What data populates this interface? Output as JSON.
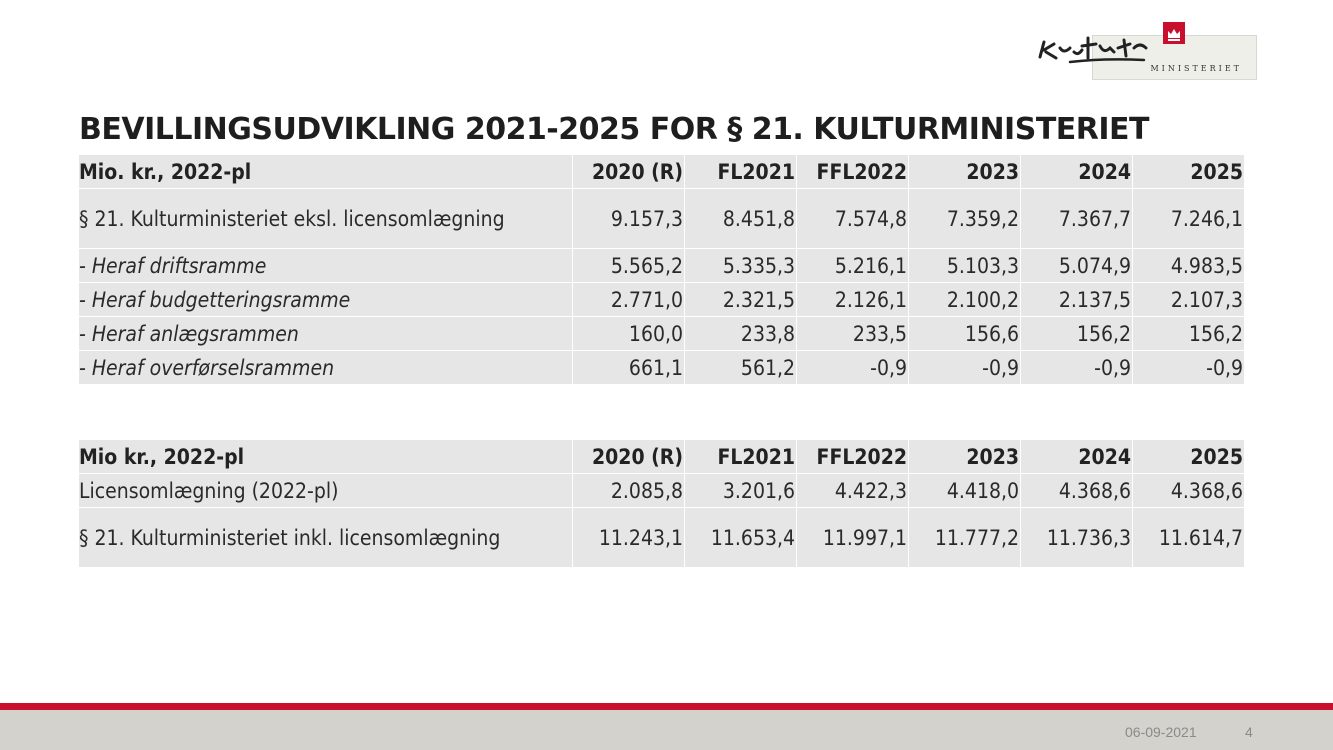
{
  "logo": {
    "script_text": "Kultur",
    "box_text": "MINISTERIET"
  },
  "title": "BEVILLINGSUDVIKLING 2021-2025 FOR § 21. KULTURMINISTERIET",
  "table1": {
    "headers": [
      "Mio. kr., 2022-pl",
      "2020 (R)",
      "FL2021",
      "FFL2022",
      "2023",
      "2024",
      "2025"
    ],
    "rows": [
      {
        "label": "§ 21. Kulturministeriet eksl. licensomlægning",
        "values": [
          "9.157,3",
          "8.451,8",
          "7.574,8",
          "7.359,2",
          "7.367,7",
          "7.246,1"
        ]
      },
      {
        "label": "- Heraf driftsramme",
        "values": [
          "5.565,2",
          "5.335,3",
          "5.216,1",
          "5.103,3",
          "5.074,9",
          "4.983,5"
        ]
      },
      {
        "label": "- Heraf budgetteringsramme",
        "values": [
          "2.771,0",
          "2.321,5",
          "2.126,1",
          "2.100,2",
          "2.137,5",
          "2.107,3"
        ]
      },
      {
        "label": "- Heraf anlægsrammen",
        "values": [
          "160,0",
          "233,8",
          "233,5",
          "156,6",
          "156,2",
          "156,2"
        ]
      },
      {
        "label": "- Heraf overførselsrammen",
        "values": [
          "661,1",
          "561,2",
          "-0,9",
          "-0,9",
          "-0,9",
          "-0,9"
        ]
      }
    ]
  },
  "table2": {
    "headers": [
      "Mio kr., 2022-pl",
      "2020 (R)",
      "FL2021",
      "FFL2022",
      "2023",
      "2024",
      "2025"
    ],
    "rows": [
      {
        "label": "Licensomlægning (2022-pl)",
        "values": [
          "2.085,8",
          "3.201,6",
          "4.422,3",
          "4.418,0",
          "4.368,6",
          "4.368,6"
        ]
      },
      {
        "label": "§ 21. Kulturministeriet inkl. licensomlægning",
        "values": [
          "11.243,1",
          "11.653,4",
          "11.997,1",
          "11.777,2",
          "11.736,3",
          "11.614,7"
        ]
      }
    ]
  },
  "footer": {
    "date": "06-09-2021",
    "page": "4"
  },
  "colors": {
    "accent_red": "#c8102e",
    "cell_gray": "#e6e6e6",
    "footer_band": "#d4d2cc"
  }
}
